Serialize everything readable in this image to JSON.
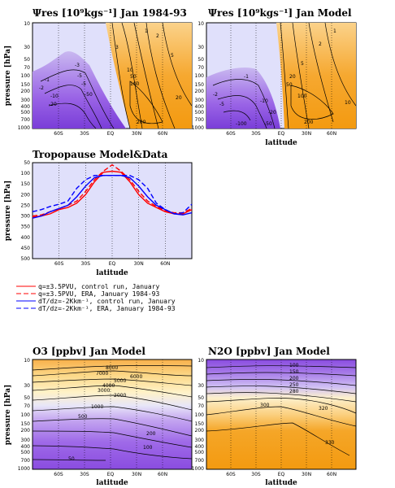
{
  "panels": {
    "psi_data": {
      "title": "Ψres [10⁹kgs⁻¹] Jan 1984-93",
      "ylabel": "pressure [hPa]",
      "contour_labels": [
        "-1",
        "-2",
        "-5",
        "-10",
        "-20",
        "-50",
        "-5",
        "-3",
        "1",
        "2",
        "3",
        "5",
        "10",
        "20",
        "50",
        "100",
        "200"
      ]
    },
    "psi_model": {
      "title": "Ψres [10⁹kgs⁻¹] Jan Model",
      "xlabel": "latitude",
      "contour_labels": [
        "-1",
        "-2",
        "-5",
        "-10",
        "-20",
        "-50",
        "-100",
        "1",
        "2",
        "5",
        "10",
        "20",
        "50",
        "100",
        "200"
      ]
    },
    "tropopause": {
      "title": "Tropopause Model&Data",
      "xlabel": "latitude",
      "ylabel": "pressure [hPa]"
    },
    "o3_model": {
      "title": "O3 [ppbv] Jan Model",
      "xlabel": "latitude",
      "ylabel": "pressure [hPa]",
      "contour_labels": [
        "8000",
        "7000",
        "6000",
        "5000",
        "4000",
        "3000",
        "2000",
        "1000",
        "500",
        "200",
        "100",
        "50"
      ]
    },
    "n2o_model": {
      "title": "N2O [ppbv] Jan Model",
      "xlabel": "latitude",
      "contour_labels": [
        "100",
        "150",
        "200",
        "250",
        "280",
        "300",
        "320",
        "330"
      ]
    }
  },
  "legend": {
    "items": [
      {
        "label": "q=±3.5PVU, control run, January",
        "color": "#ff0000",
        "dash": "solid"
      },
      {
        "label": "q=±3.5PVU, ERA, January 1984-93",
        "color": "#ff0000",
        "dash": "dashed"
      },
      {
        "label": "dT/dz=-2Kkm⁻¹, control run, January",
        "color": "#0000ff",
        "dash": "solid"
      },
      {
        "label": "dT/dz=-2Kkm⁻¹, ERA, January 1984-93",
        "color": "#0000ff",
        "dash": "dashed"
      }
    ]
  },
  "colors": {
    "orange": "#f5a020",
    "light_orange": "#fde0a8",
    "purple": "#8a4ce0",
    "light_purple": "#d8d0f8",
    "panel_bg": "#e0e0fb",
    "red": "#ff0000",
    "blue": "#0000ff"
  },
  "axes": {
    "lat_ticks": [
      "60S",
      "30S",
      "EQ",
      "30N",
      "60N"
    ],
    "p_ticks_full": [
      "10",
      "30",
      "50",
      "70",
      "100",
      "150",
      "200",
      "300",
      "400",
      "500",
      "700",
      "1000"
    ],
    "p_ticks_trop": [
      "50",
      "100",
      "150",
      "200",
      "250",
      "300",
      "350",
      "400",
      "450",
      "500"
    ]
  },
  "chart_data": [
    {
      "type": "line",
      "title": "Tropopause Model&Data",
      "xlabel": "latitude",
      "ylabel": "pressure [hPa]",
      "x": [
        -90,
        -80,
        -70,
        -60,
        -50,
        -40,
        -30,
        -20,
        -10,
        0,
        10,
        20,
        30,
        40,
        50,
        60,
        70,
        80,
        90
      ],
      "xlim": [
        -90,
        90
      ],
      "ylim": [
        500,
        50
      ],
      "series": [
        {
          "name": "q=±3.5PVU, control run, January",
          "color": "#ff0000",
          "dash": "solid",
          "values": [
            305,
            300,
            290,
            270,
            260,
            240,
            200,
            140,
            95,
            90,
            95,
            140,
            200,
            240,
            260,
            280,
            290,
            290,
            270
          ]
        },
        {
          "name": "q=±3.5PVU, ERA, January 1984-93",
          "color": "#ff0000",
          "dash": "dashed",
          "values": [
            300,
            295,
            280,
            265,
            250,
            230,
            185,
            130,
            90,
            60,
            90,
            130,
            185,
            230,
            255,
            275,
            285,
            285,
            265
          ]
        },
        {
          "name": "dT/dz=-2Kkm⁻¹, control run, January",
          "color": "#0000ff",
          "dash": "solid",
          "values": [
            310,
            300,
            280,
            265,
            250,
            210,
            160,
            120,
            110,
            110,
            110,
            120,
            160,
            210,
            250,
            270,
            290,
            295,
            285
          ]
        },
        {
          "name": "dT/dz=-2Kkm⁻¹, ERA, January 1984-93",
          "color": "#0000ff",
          "dash": "dashed",
          "values": [
            280,
            270,
            255,
            245,
            230,
            170,
            130,
            110,
            110,
            110,
            110,
            110,
            130,
            170,
            240,
            270,
            290,
            285,
            245
          ]
        }
      ]
    }
  ]
}
